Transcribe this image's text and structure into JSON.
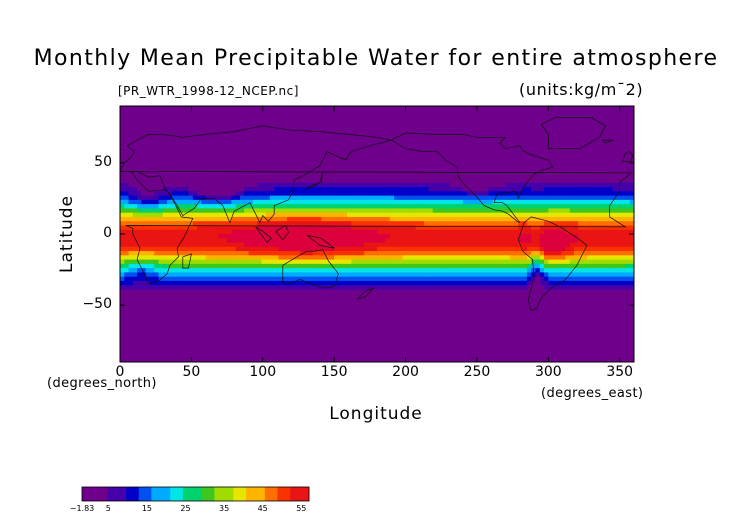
{
  "title": "Monthly Mean Precipitable Water for entire atmosphere",
  "source_file": "[PR_WTR_1998-12_NCEP.nc]",
  "units_label": "(units:kg/m¯2)",
  "chart_data": {
    "type": "heatmap",
    "xlabel": "Longitude",
    "ylabel": "Latitude",
    "x_units": "(degrees_east)",
    "y_units": "(degrees_north)",
    "xlim": [
      0,
      360
    ],
    "ylim": [
      -90,
      90
    ],
    "x_ticks": [
      0,
      50,
      100,
      150,
      200,
      250,
      300,
      350
    ],
    "y_ticks": [
      50,
      0,
      -50
    ],
    "colorbar": {
      "labels": [
        "-1.83",
        "5",
        "15",
        "25",
        "35",
        "45",
        "55"
      ],
      "range": [
        -1.83,
        57
      ]
    },
    "notes": "Precipitable water peaks (~45-55) over the Indo-Pacific warm pool and tropical South America; values fall below ~10 poleward of 60 degrees."
  }
}
